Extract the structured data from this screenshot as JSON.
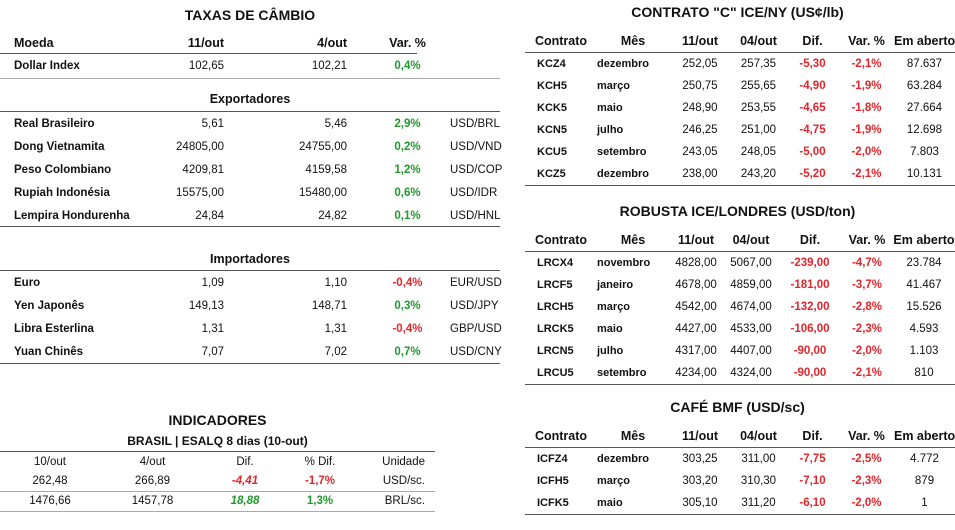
{
  "fx": {
    "title": "TAXAS DE CÂMBIO",
    "headers": [
      "Moeda",
      "11/out",
      "4/out",
      "Var. %"
    ],
    "index_row": {
      "name": "Dollar Index",
      "v1": "102,65",
      "v2": "102,21",
      "pct": "0,4%"
    },
    "exporters_title": "Exportadores",
    "exporters": [
      {
        "name": "Real Brasileiro",
        "v1": "5,61",
        "v2": "5,46",
        "pct": "2,9%",
        "unit": "USD/BRL",
        "dir": "up"
      },
      {
        "name": "Dong Vietnamita",
        "v1": "24805,00",
        "v2": "24755,00",
        "pct": "0,2%",
        "unit": "USD/VND",
        "dir": "up"
      },
      {
        "name": "Peso Colombiano",
        "v1": "4209,81",
        "v2": "4159,58",
        "pct": "1,2%",
        "unit": "USD/COP",
        "dir": "up"
      },
      {
        "name": "Rupiah Indonésia",
        "v1": "15575,00",
        "v2": "15480,00",
        "pct": "0,6%",
        "unit": "USD/IDR",
        "dir": "up"
      },
      {
        "name": "Lempira Hondurenha",
        "v1": "24,84",
        "v2": "24,82",
        "pct": "0,1%",
        "unit": "USD/HNL",
        "dir": "up"
      }
    ],
    "importers_title": "Importadores",
    "importers": [
      {
        "name": "Euro",
        "v1": "1,09",
        "v2": "1,10",
        "pct": "-0,4%",
        "unit": "EUR/USD",
        "dir": "down"
      },
      {
        "name": "Yen Japonês",
        "v1": "149,13",
        "v2": "148,71",
        "pct": "0,3%",
        "unit": "USD/JPY",
        "dir": "up"
      },
      {
        "name": "Libra Esterlina",
        "v1": "1,31",
        "v2": "1,31",
        "pct": "-0,4%",
        "unit": "GBP/USD",
        "dir": "down"
      },
      {
        "name": "Yuan Chinês",
        "v1": "7,07",
        "v2": "7,02",
        "pct": "0,7%",
        "unit": "USD/CNY",
        "dir": "up"
      }
    ]
  },
  "ind": {
    "title": "INDICADORES",
    "subtitle": "BRASIL | ESALQ 8 dias (10-out)",
    "headers": [
      "10/out",
      "4/out",
      "Dif.",
      "% Dif.",
      "Unidade"
    ],
    "rows": [
      {
        "a": "262,48",
        "b": "266,89",
        "dif": "-4,41",
        "pdif": "-1,7%",
        "unit": "USD/sc.",
        "dir": "down"
      },
      {
        "a": "1476,66",
        "b": "1457,78",
        "dif": "18,88",
        "pdif": "1,3%",
        "unit": "BRL/sc.",
        "dir": "up"
      }
    ]
  },
  "ny": {
    "title": "CONTRATO \"C\" ICE/NY (US¢/lb)",
    "headers": [
      "Contrato",
      "Mês",
      "11/out",
      "04/out",
      "Dif.",
      "Var. %",
      "Em aberto"
    ],
    "rows": [
      {
        "c": "KCZ4",
        "m": "dezembro",
        "a": "252,05",
        "b": "257,35",
        "d": "-5,30",
        "p": "-2,1%",
        "o": "87.637"
      },
      {
        "c": "KCH5",
        "m": "março",
        "a": "250,75",
        "b": "255,65",
        "d": "-4,90",
        "p": "-1,9%",
        "o": "63.284"
      },
      {
        "c": "KCK5",
        "m": "maio",
        "a": "248,90",
        "b": "253,55",
        "d": "-4,65",
        "p": "-1,8%",
        "o": "27.664"
      },
      {
        "c": "KCN5",
        "m": "julho",
        "a": "246,25",
        "b": "251,00",
        "d": "-4,75",
        "p": "-1,9%",
        "o": "12.698"
      },
      {
        "c": "KCU5",
        "m": "setembro",
        "a": "243,05",
        "b": "248,05",
        "d": "-5,00",
        "p": "-2,0%",
        "o": "7.803"
      },
      {
        "c": "KCZ5",
        "m": "dezembro",
        "a": "238,00",
        "b": "243,20",
        "d": "-5,20",
        "p": "-2,1%",
        "o": "10.131"
      }
    ]
  },
  "rob": {
    "title": "ROBUSTA ICE/LONDRES (USD/ton)",
    "headers": [
      "Contrato",
      "Mês",
      "11/out",
      "04/out",
      "Dif.",
      "Var. %",
      "Em aberto"
    ],
    "rows": [
      {
        "c": "LRCX4",
        "m": "novembro",
        "a": "4828,00",
        "b": "5067,00",
        "d": "-239,00",
        "p": "-4,7%",
        "o": "23.784"
      },
      {
        "c": "LRCF5",
        "m": "janeiro",
        "a": "4678,00",
        "b": "4859,00",
        "d": "-181,00",
        "p": "-3,7%",
        "o": "41.467"
      },
      {
        "c": "LRCH5",
        "m": "março",
        "a": "4542,00",
        "b": "4674,00",
        "d": "-132,00",
        "p": "-2,8%",
        "o": "15.526"
      },
      {
        "c": "LRCK5",
        "m": "maio",
        "a": "4427,00",
        "b": "4533,00",
        "d": "-106,00",
        "p": "-2,3%",
        "o": "4.593"
      },
      {
        "c": "LRCN5",
        "m": "julho",
        "a": "4317,00",
        "b": "4407,00",
        "d": "-90,00",
        "p": "-2,0%",
        "o": "1.103"
      },
      {
        "c": "LRCU5",
        "m": "setembro",
        "a": "4234,00",
        "b": "4324,00",
        "d": "-90,00",
        "p": "-2,1%",
        "o": "810"
      }
    ]
  },
  "bmf": {
    "title": "CAFÉ BMF (USD/sc)",
    "headers": [
      "Contrato",
      "Mês",
      "11/out",
      "04/out",
      "Dif.",
      "Var. %",
      "Em aberto"
    ],
    "rows": [
      {
        "c": "ICFZ4",
        "m": "dezembro",
        "a": "303,25",
        "b": "311,00",
        "d": "-7,75",
        "p": "-2,5%",
        "o": "4.772"
      },
      {
        "c": "ICFH5",
        "m": "março",
        "a": "303,20",
        "b": "310,30",
        "d": "-7,10",
        "p": "-2,3%",
        "o": "879"
      },
      {
        "c": "ICFK5",
        "m": "maio",
        "a": "305,10",
        "b": "311,20",
        "d": "-6,10",
        "p": "-2,0%",
        "o": "1"
      }
    ]
  },
  "colors": {
    "up": "#1f9a2b",
    "down": "#e3262b",
    "rule": "#555555"
  }
}
